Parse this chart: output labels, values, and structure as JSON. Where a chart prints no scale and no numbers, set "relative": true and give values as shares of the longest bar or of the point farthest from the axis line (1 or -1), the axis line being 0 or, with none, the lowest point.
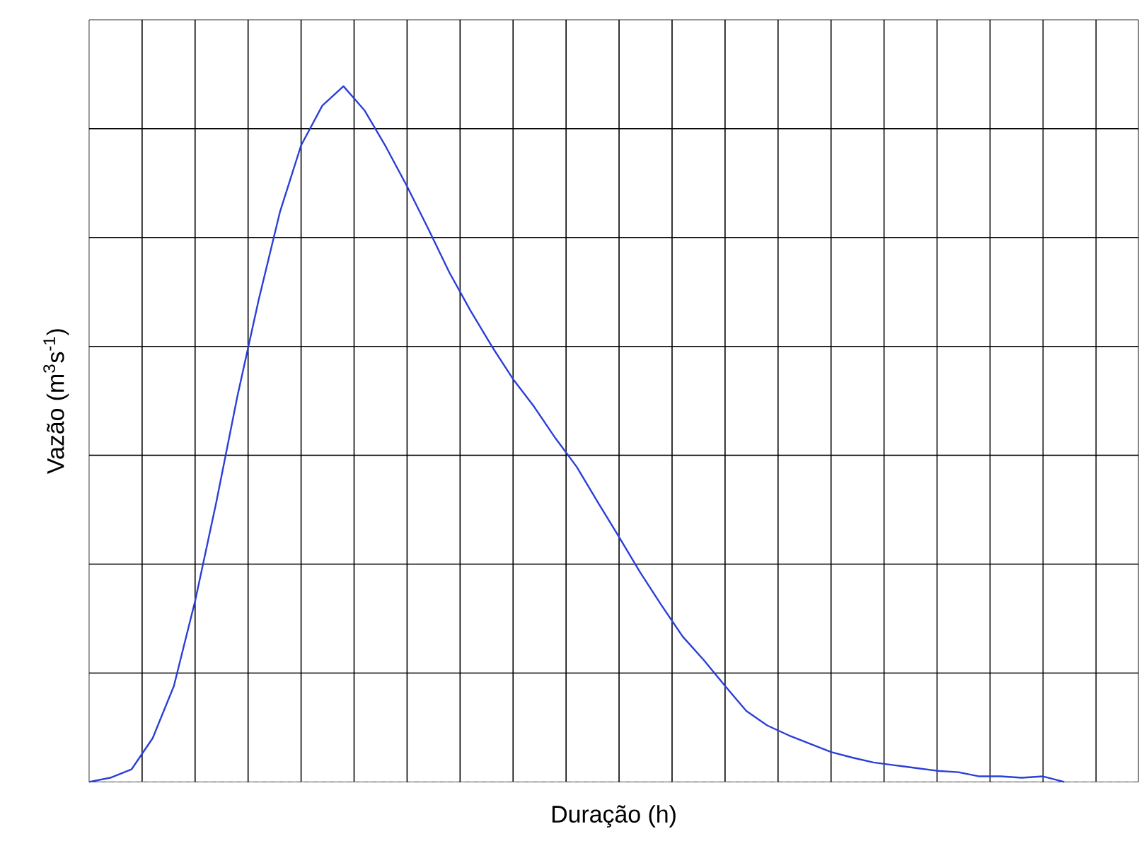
{
  "chart_data": {
    "type": "line",
    "xlabel": "Duração (h)",
    "ylabel": "Vazão (m$^{3}$s$^{-1}$)",
    "relative": true,
    "grid": true,
    "categories": [
      null,
      null,
      null,
      null,
      null,
      null,
      null,
      null,
      null,
      null,
      null,
      null,
      null,
      null,
      null,
      null,
      null,
      null,
      null,
      null,
      null,
      null,
      null,
      null,
      null,
      null,
      null,
      null,
      null,
      null,
      null,
      null,
      null,
      null,
      null,
      null,
      null,
      null,
      null,
      null,
      null,
      null,
      null,
      null,
      null,
      null,
      null,
      null,
      null,
      null
    ],
    "series": [
      {
        "color": "#2a3fd8",
        "values": [
          0,
          0.006,
          0.018,
          0.063,
          0.138,
          0.26,
          0.402,
          0.555,
          0.693,
          0.819,
          0.915,
          0.972,
          1.0,
          0.965,
          0.913,
          0.856,
          0.795,
          0.732,
          0.677,
          0.626,
          0.579,
          0.539,
          0.494,
          0.453,
          0.402,
          0.352,
          0.301,
          0.254,
          0.209,
          0.175,
          0.138,
          0.102,
          0.081,
          0.067,
          0.055,
          0.043,
          0.035,
          0.028,
          0.024,
          0.02,
          0.016,
          0.014,
          0.008,
          0.008,
          0.006,
          0.008,
          0,
          null,
          null,
          null
        ]
      }
    ],
    "marker": "none",
    "line_style": "solid"
  }
}
